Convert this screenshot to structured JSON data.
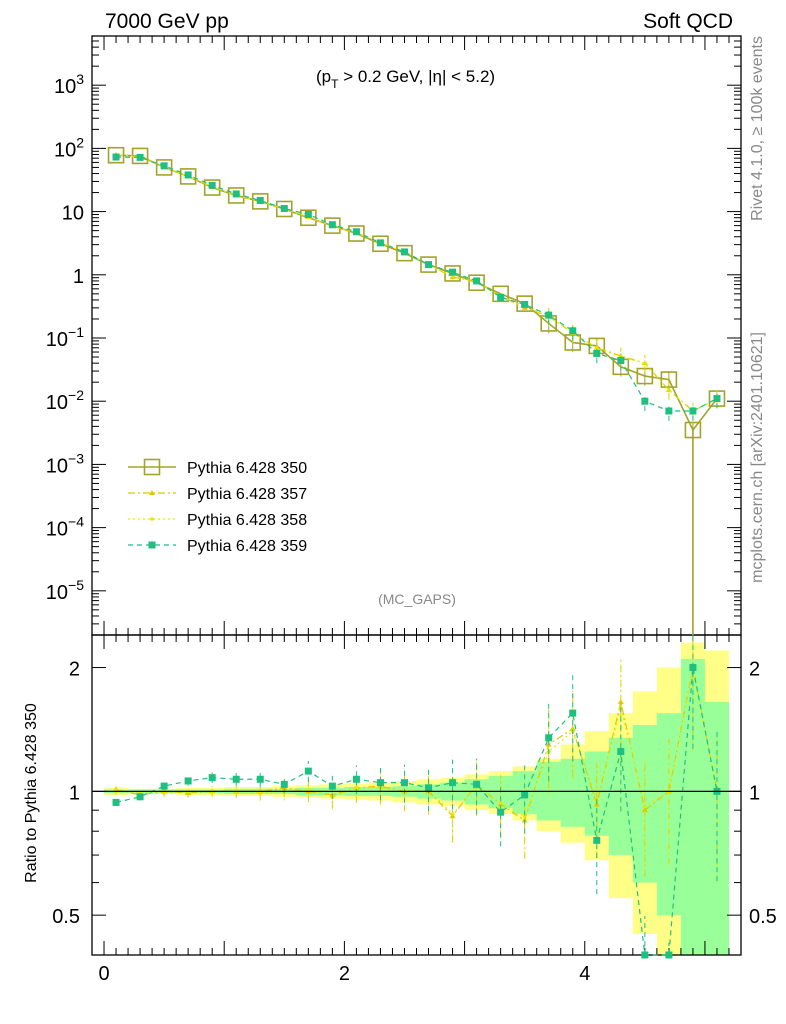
{
  "header": {
    "left": "7000 GeV pp",
    "right": "Soft QCD"
  },
  "annotation": "(p_T > 0.2 GeV, |η| < 5.2)",
  "annotation_parts": {
    "p": "(p",
    "sub": "T",
    "rest": " > 0.2 GeV, |η| < 5.2)"
  },
  "watermark": "(MC_GAPS)",
  "side_right_top": "Rivet 4.1.0, ≥ 100k events",
  "side_right_bottom": "mcplots.cern.ch [arXiv:2401.10621]",
  "ratio_ylabel": "Ratio to Pythia 6.428 350",
  "main_yticks": [
    {
      "value": 1000.0,
      "base": "10",
      "exp": "3"
    },
    {
      "value": 100.0,
      "base": "10",
      "exp": "2"
    },
    {
      "value": 10,
      "base": "10",
      "exp": ""
    },
    {
      "value": 1,
      "base": "1",
      "exp": ""
    },
    {
      "value": 0.1,
      "base": "10",
      "exp": "−1"
    },
    {
      "value": 0.01,
      "base": "10",
      "exp": "−2"
    },
    {
      "value": 0.001,
      "base": "10",
      "exp": "−3"
    },
    {
      "value": 0.0001,
      "base": "10",
      "exp": "−4"
    },
    {
      "value": 1e-05,
      "base": "10",
      "exp": "−5"
    }
  ],
  "ratio_yticks": [
    "0.5",
    "1",
    "2"
  ],
  "ratio_ytick_values": [
    0.5,
    1,
    2
  ],
  "xticks": [
    "0",
    "2",
    "4"
  ],
  "xtick_values": [
    0,
    2,
    4
  ],
  "colors": {
    "p350": "#a3a32a",
    "p357": "#e0c800",
    "p358": "#e6e600",
    "p359": "#1fbf80",
    "band_yellow": "#ffff88",
    "band_green": "#99ff99"
  },
  "chart_data": {
    "type": "line",
    "x_axis": {
      "min": -0.1,
      "max": 5.3,
      "ticks": [
        0,
        2,
        4
      ]
    },
    "main_y_axis": {
      "scale": "log",
      "min": 2e-06,
      "max": 6000
    },
    "ratio_y_axis": {
      "scale": "log",
      "min": 0.4,
      "max": 2.4
    },
    "x": [
      0.1,
      0.3,
      0.5,
      0.7,
      0.9,
      1.1,
      1.3,
      1.5,
      1.7,
      1.9,
      2.1,
      2.3,
      2.5,
      2.7,
      2.9,
      3.1,
      3.3,
      3.5,
      3.7,
      3.9,
      4.1,
      4.3,
      4.5,
      4.7,
      4.9,
      5.1
    ],
    "series": [
      {
        "name": "Pythia 6.428 350",
        "values": [
          78,
          76,
          50,
          36,
          24,
          18,
          14.5,
          11,
          8,
          6,
          4.5,
          3.1,
          2.2,
          1.45,
          1.05,
          0.75,
          0.5,
          0.35,
          0.17,
          0.085,
          0.075,
          0.035,
          0.025,
          0.022,
          0.0035,
          0.011
        ],
        "ratio": [
          1,
          1,
          1,
          1,
          1,
          1,
          1,
          1,
          1,
          1,
          1,
          1,
          1,
          1,
          1,
          1,
          1,
          1,
          1,
          1,
          1,
          1,
          1,
          1,
          1,
          1
        ]
      },
      {
        "name": "Pythia 6.428 357",
        "values": [
          79,
          74,
          50,
          36,
          24.5,
          18,
          14.5,
          11,
          8.2,
          5.9,
          4.6,
          3.2,
          2.3,
          1.45,
          0.92,
          0.78,
          0.46,
          0.3,
          0.22,
          0.12,
          0.07,
          0.052,
          0.04,
          0.015,
          0.007,
          0.011
        ],
        "ratio": [
          1.01,
          0.98,
          1.0,
          0.99,
          1.0,
          1.0,
          1.0,
          1.02,
          1.0,
          0.98,
          1.02,
          1.03,
          1.0,
          1.0,
          0.87,
          1.04,
          0.93,
          0.85,
          1.3,
          1.42,
          0.93,
          1.65,
          0.9,
          1.0,
          2.0,
          1.0
        ]
      },
      {
        "name": "Pythia 6.428 358",
        "values": [
          79,
          75,
          50,
          36,
          24.5,
          18,
          14.5,
          11,
          8.1,
          5.9,
          4.6,
          3.2,
          2.3,
          1.45,
          0.95,
          0.78,
          0.46,
          0.32,
          0.22,
          0.12,
          0.07,
          0.05,
          0.04,
          0.015,
          0.007,
          0.011
        ],
        "ratio": [
          1.0,
          0.99,
          0.99,
          1.0,
          1.0,
          1.0,
          0.99,
          1.0,
          1.01,
          0.97,
          1.02,
          1.02,
          1.0,
          1.01,
          0.88,
          1.03,
          0.94,
          0.87,
          1.25,
          1.4,
          0.95,
          1.6,
          0.92,
          1.0,
          1.98,
          1.0
        ]
      },
      {
        "name": "Pythia 6.428 359",
        "values": [
          73,
          72,
          53,
          38,
          26,
          19,
          15,
          11.2,
          9,
          6.2,
          4.8,
          3.2,
          2.3,
          1.45,
          1.1,
          0.8,
          0.44,
          0.34,
          0.23,
          0.13,
          0.057,
          0.044,
          0.01,
          0.007,
          0.007,
          0.011
        ],
        "ratio": [
          0.94,
          0.97,
          1.03,
          1.06,
          1.08,
          1.07,
          1.07,
          1.04,
          1.12,
          1.03,
          1.07,
          1.05,
          1.05,
          1.02,
          1.05,
          1.04,
          0.89,
          0.98,
          1.35,
          1.55,
          0.76,
          1.25,
          0.38,
          0.32,
          2.0,
          1.0
        ]
      }
    ],
    "ratio_band_yellow": [
      0.98,
      0.985,
      0.985,
      0.98,
      0.98,
      0.975,
      0.975,
      0.97,
      0.965,
      0.96,
      0.955,
      0.95,
      0.94,
      0.93,
      0.92,
      0.9,
      0.88,
      0.85,
      0.8,
      0.75,
      0.68,
      0.55,
      0.45,
      0.38,
      0.3,
      0.25
    ],
    "ratio_band_yellow_hi": [
      1.02,
      1.015,
      1.015,
      1.02,
      1.02,
      1.025,
      1.025,
      1.03,
      1.035,
      1.04,
      1.045,
      1.05,
      1.06,
      1.07,
      1.08,
      1.1,
      1.12,
      1.15,
      1.2,
      1.3,
      1.4,
      1.55,
      1.75,
      2.0,
      2.3,
      2.2
    ],
    "ratio_band_green": [
      0.99,
      0.99,
      0.99,
      0.99,
      0.99,
      0.985,
      0.985,
      0.985,
      0.98,
      0.98,
      0.975,
      0.975,
      0.97,
      0.96,
      0.95,
      0.93,
      0.91,
      0.88,
      0.85,
      0.82,
      0.78,
      0.7,
      0.6,
      0.5,
      0.4,
      0.35
    ],
    "ratio_band_green_hi": [
      1.01,
      1.01,
      1.01,
      1.01,
      1.01,
      1.015,
      1.015,
      1.015,
      1.02,
      1.02,
      1.025,
      1.025,
      1.03,
      1.04,
      1.05,
      1.07,
      1.09,
      1.12,
      1.18,
      1.2,
      1.25,
      1.35,
      1.45,
      1.55,
      2.1,
      1.65
    ]
  }
}
